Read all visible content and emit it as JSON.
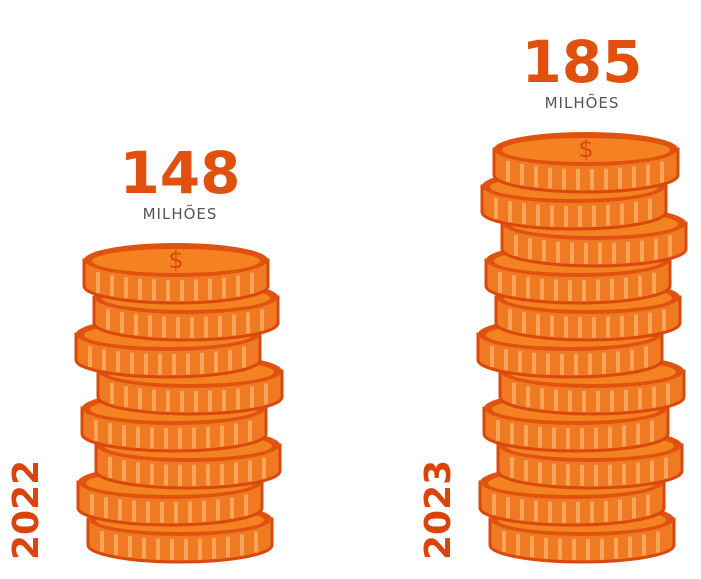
{
  "chart_data": {
    "type": "coin-stack",
    "categories": [
      "2022",
      "2023"
    ],
    "values": [
      148,
      185
    ],
    "unit_label": "MILHÕES",
    "color": "#f07a22"
  }
}
